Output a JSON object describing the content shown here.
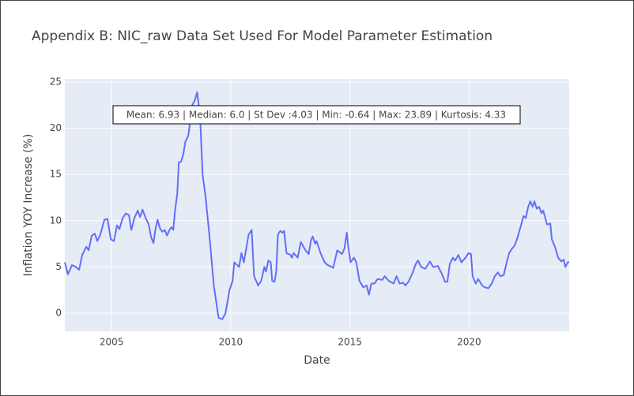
{
  "chart_data": {
    "type": "line",
    "title": "Appendix B: NIC_raw Data Set Used For Model Parameter Estimation",
    "x_label": "Date",
    "y_label": "Inflation YOY Increase (%)",
    "annotation": "Mean: 6.93 | Median: 6.0 | St Dev :4.03 | Min: -0.64 | Max: 23.89 | Kurtosis: 4.33",
    "xlim": [
      2003.04,
      2024.2
    ],
    "xticks": [
      2005,
      2010,
      2015,
      2020
    ],
    "ylim": [
      -1.96,
      25.34
    ],
    "yticks": [
      0,
      5,
      10,
      15,
      20,
      25
    ],
    "grid": true,
    "series": [
      {
        "name": "NIC_raw",
        "color": "#636efa",
        "x": [
          2003.04,
          2003.17,
          2003.34,
          2003.5,
          2003.64,
          2003.77,
          2003.94,
          2004.04,
          2004.17,
          2004.3,
          2004.4,
          2004.53,
          2004.7,
          2004.83,
          2004.97,
          2005.1,
          2005.23,
          2005.33,
          2005.47,
          2005.6,
          2005.73,
          2005.83,
          2005.96,
          2006.1,
          2006.2,
          2006.3,
          2006.43,
          2006.56,
          2006.66,
          2006.76,
          2006.83,
          2006.93,
          2007.03,
          2007.13,
          2007.23,
          2007.33,
          2007.43,
          2007.52,
          2007.59,
          2007.66,
          2007.76,
          2007.82,
          2007.92,
          2008.02,
          2008.09,
          2008.22,
          2008.39,
          2008.49,
          2008.59,
          2008.66,
          2008.72,
          2008.82,
          2008.95,
          2009.12,
          2009.29,
          2009.49,
          2009.65,
          2009.78,
          2009.95,
          2010.08,
          2010.15,
          2010.35,
          2010.45,
          2010.55,
          2010.75,
          2010.88,
          2010.98,
          2011.15,
          2011.28,
          2011.41,
          2011.48,
          2011.58,
          2011.68,
          2011.74,
          2011.84,
          2011.91,
          2011.98,
          2012.08,
          2012.18,
          2012.24,
          2012.34,
          2012.51,
          2012.57,
          2012.64,
          2012.81,
          2012.94,
          2013.14,
          2013.27,
          2013.37,
          2013.44,
          2013.54,
          2013.6,
          2013.77,
          2013.94,
          2014.07,
          2014.24,
          2014.3,
          2014.47,
          2014.67,
          2014.77,
          2014.87,
          2014.93,
          2015.03,
          2015.17,
          2015.27,
          2015.4,
          2015.56,
          2015.7,
          2015.8,
          2015.9,
          2016.03,
          2016.16,
          2016.36,
          2016.46,
          2016.63,
          2016.83,
          2016.96,
          2017.09,
          2017.23,
          2017.33,
          2017.46,
          2017.62,
          2017.76,
          2017.86,
          2017.99,
          2018.16,
          2018.36,
          2018.49,
          2018.69,
          2018.85,
          2018.99,
          2019.09,
          2019.19,
          2019.32,
          2019.42,
          2019.55,
          2019.68,
          2019.85,
          2019.98,
          2020.08,
          2020.15,
          2020.28,
          2020.38,
          2020.55,
          2020.65,
          2020.81,
          2020.95,
          2021.08,
          2021.21,
          2021.31,
          2021.45,
          2021.58,
          2021.68,
          2021.81,
          2021.91,
          2022.01,
          2022.18,
          2022.28,
          2022.38,
          2022.48,
          2022.57,
          2022.67,
          2022.74,
          2022.84,
          2022.94,
          2023.04,
          2023.11,
          2023.27,
          2023.41,
          2023.47,
          2023.6,
          2023.74,
          2023.87,
          2023.97,
          2024.04,
          2024.14,
          2024.2
        ],
        "values": [
          5.5,
          4.2,
          5.2,
          5.0,
          4.7,
          6.3,
          7.2,
          6.8,
          8.4,
          8.6,
          7.8,
          8.5,
          10.1,
          10.2,
          8.0,
          7.8,
          9.5,
          9.1,
          10.3,
          10.8,
          10.6,
          9.0,
          10.3,
          11.1,
          10.4,
          11.2,
          10.3,
          9.6,
          8.2,
          7.6,
          8.9,
          10.1,
          9.2,
          8.8,
          9.0,
          8.4,
          9.0,
          9.3,
          9.0,
          11.0,
          13.0,
          16.3,
          16.4,
          17.3,
          18.5,
          19.2,
          22.5,
          23.0,
          23.89,
          22.5,
          21.0,
          15.0,
          12.5,
          8.0,
          3.0,
          -0.5,
          -0.64,
          0.0,
          2.5,
          3.5,
          5.5,
          5.0,
          6.5,
          5.5,
          8.5,
          9.0,
          4.0,
          3.0,
          3.5,
          5.0,
          4.5,
          5.7,
          5.5,
          3.5,
          3.4,
          4.5,
          8.5,
          8.9,
          8.7,
          8.9,
          6.5,
          6.3,
          6.0,
          6.5,
          6.0,
          7.7,
          6.8,
          6.4,
          7.9,
          8.3,
          7.5,
          7.8,
          6.5,
          5.5,
          5.2,
          5.0,
          4.9,
          6.8,
          6.4,
          7.0,
          8.7,
          7.2,
          5.5,
          6.0,
          5.5,
          3.5,
          2.8,
          3.0,
          2.0,
          3.2,
          3.2,
          3.7,
          3.6,
          4.0,
          3.5,
          3.2,
          4.0,
          3.2,
          3.3,
          3.0,
          3.4,
          4.3,
          5.3,
          5.7,
          5.0,
          4.8,
          5.6,
          5.0,
          5.1,
          4.3,
          3.4,
          3.4,
          5.3,
          6.0,
          5.7,
          6.3,
          5.5,
          6.0,
          6.5,
          6.4,
          4.0,
          3.2,
          3.7,
          3.0,
          2.8,
          2.7,
          3.2,
          4.0,
          4.4,
          4.0,
          4.1,
          5.5,
          6.5,
          7.0,
          7.3,
          8.0,
          9.5,
          10.5,
          10.3,
          11.5,
          12.1,
          11.5,
          12.1,
          11.3,
          11.5,
          10.8,
          11.1,
          9.6,
          9.7,
          8.0,
          7.2,
          6.0,
          5.6,
          5.8,
          5.0,
          5.5,
          5.5
        ]
      }
    ]
  }
}
